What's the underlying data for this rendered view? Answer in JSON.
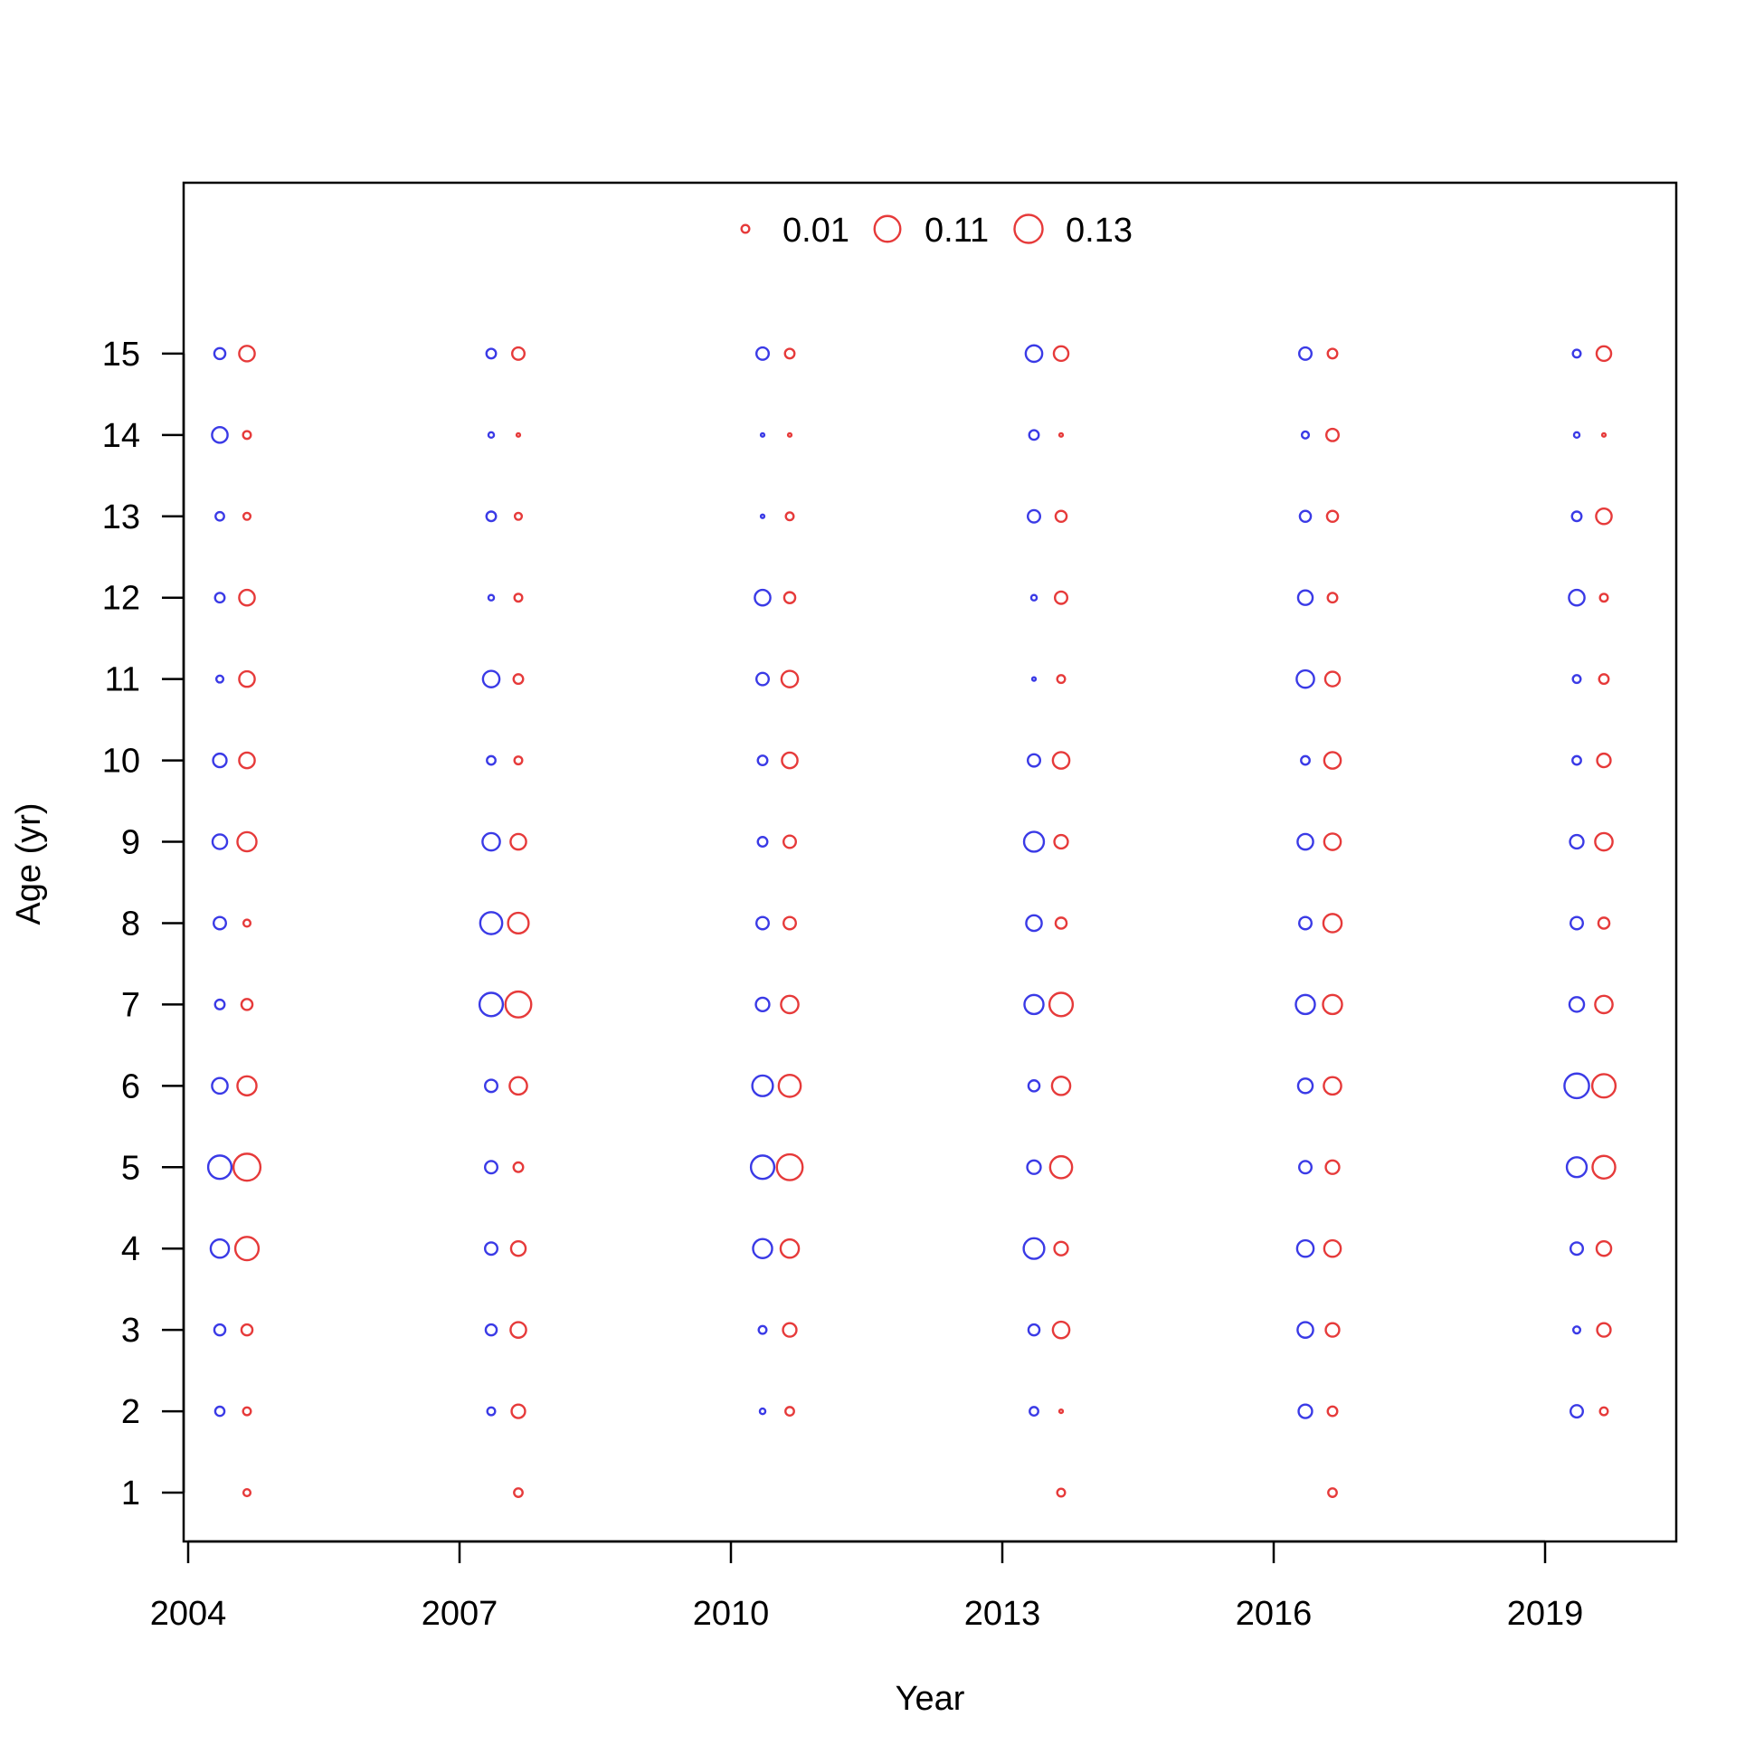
{
  "chart_data": {
    "type": "scatter",
    "title": "",
    "xlabel": "Year",
    "ylabel": "Age (yr)",
    "xlim": [
      2003.95,
      2020.45
    ],
    "ylim": [
      0.4,
      17.1
    ],
    "x_ticks": [
      2004,
      2007,
      2010,
      2013,
      2016,
      2019
    ],
    "y_ticks": [
      1,
      2,
      3,
      4,
      5,
      6,
      7,
      8,
      9,
      10,
      11,
      12,
      13,
      14,
      15
    ],
    "grid": false,
    "legend": {
      "placement": "top-center",
      "entries": [
        {
          "label": "0.01",
          "value": 0.01
        },
        {
          "label": "0.11",
          "value": 0.11
        },
        {
          "label": "0.13",
          "value": 0.13
        }
      ]
    },
    "colors": {
      "series_a": "#3a3ae6",
      "series_b": "#e63a3a"
    },
    "x_offset_years": 0.15,
    "ages": [
      1,
      2,
      3,
      4,
      5,
      6,
      7,
      8,
      9,
      10,
      11,
      12,
      13,
      14,
      15
    ],
    "years": [
      2004.5,
      2007.5,
      2010.5,
      2013.5,
      2016.5,
      2019.5
    ],
    "series": [
      {
        "color": "#3a3ae6",
        "side": -1,
        "values": [
          [
            0,
            0.014,
            0.02,
            0.055,
            0.09,
            0.04,
            0.015,
            0.025,
            0.035,
            0.03,
            0.008,
            0.015,
            0.012,
            0.04,
            0.02
          ],
          [
            0,
            0.01,
            0.02,
            0.025,
            0.025,
            0.025,
            0.09,
            0.08,
            0.05,
            0.012,
            0.045,
            0.005,
            0.015,
            0.005,
            0.015
          ],
          [
            0,
            0.005,
            0.01,
            0.06,
            0.09,
            0.07,
            0.03,
            0.025,
            0.015,
            0.015,
            0.025,
            0.04,
            0.002,
            0.002,
            0.025
          ],
          [
            0,
            0.012,
            0.02,
            0.07,
            0.03,
            0.02,
            0.06,
            0.04,
            0.065,
            0.025,
            0.002,
            0.005,
            0.025,
            0.015,
            0.045
          ],
          [
            0,
            0.03,
            0.04,
            0.045,
            0.025,
            0.035,
            0.06,
            0.025,
            0.04,
            0.012,
            0.05,
            0.035,
            0.02,
            0.008,
            0.025
          ],
          [
            0,
            0.025,
            0.008,
            0.025,
            0.065,
            0.1,
            0.035,
            0.025,
            0.03,
            0.012,
            0.01,
            0.04,
            0.015,
            0.005,
            0.01
          ]
        ]
      },
      {
        "color": "#e63a3a",
        "side": 1,
        "values": [
          [
            0.008,
            0.01,
            0.02,
            0.09,
            0.12,
            0.06,
            0.02,
            0.008,
            0.06,
            0.04,
            0.04,
            0.04,
            0.008,
            0.01,
            0.04
          ],
          [
            0.012,
            0.03,
            0.04,
            0.035,
            0.015,
            0.05,
            0.11,
            0.07,
            0.04,
            0.01,
            0.015,
            0.01,
            0.008,
            0.002,
            0.025
          ],
          [
            0,
            0.012,
            0.03,
            0.055,
            0.11,
            0.08,
            0.05,
            0.025,
            0.025,
            0.04,
            0.045,
            0.02,
            0.01,
            0.002,
            0.015
          ],
          [
            0.01,
            0.002,
            0.045,
            0.03,
            0.08,
            0.055,
            0.09,
            0.02,
            0.03,
            0.045,
            0.01,
            0.025,
            0.02,
            0.002,
            0.035
          ],
          [
            0.012,
            0.015,
            0.03,
            0.045,
            0.03,
            0.05,
            0.06,
            0.055,
            0.045,
            0.045,
            0.035,
            0.015,
            0.02,
            0.025,
            0.015
          ],
          [
            0,
            0.01,
            0.03,
            0.035,
            0.085,
            0.09,
            0.05,
            0.02,
            0.05,
            0.03,
            0.015,
            0.01,
            0.04,
            0.002,
            0.035
          ]
        ]
      }
    ]
  }
}
